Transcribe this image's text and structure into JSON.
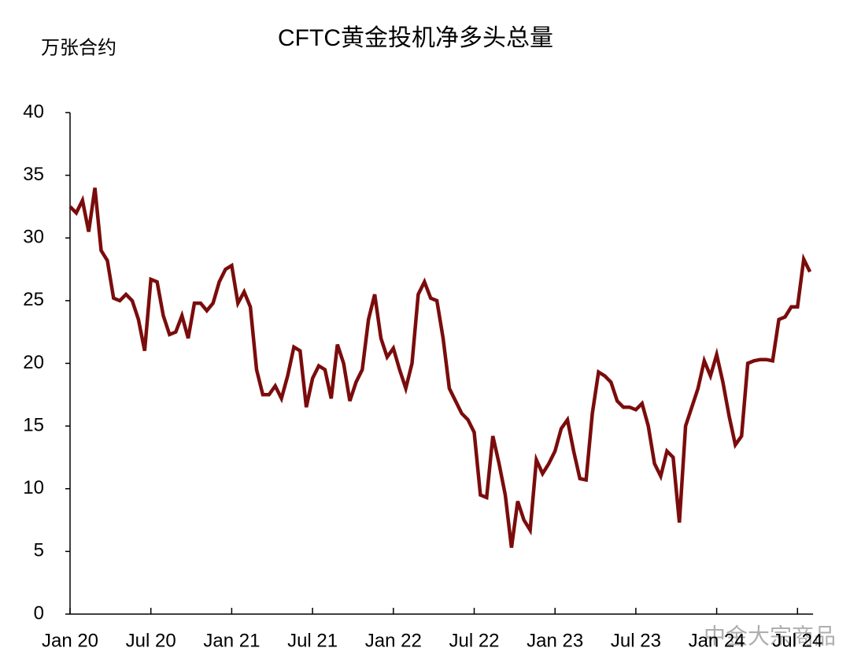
{
  "chart_data": {
    "type": "line",
    "title": "CFTC黄金投机净多头总量",
    "y_label": "万张合约",
    "watermark": "中金大宗商品",
    "categories": [
      "Jan 20",
      null,
      null,
      null,
      null,
      null,
      null,
      null,
      null,
      null,
      null,
      null,
      null,
      "Jul 20",
      null,
      null,
      null,
      null,
      null,
      null,
      null,
      null,
      null,
      null,
      null,
      null,
      "Jan 21",
      null,
      null,
      null,
      null,
      null,
      null,
      null,
      null,
      null,
      null,
      null,
      null,
      "Jul 21",
      null,
      null,
      null,
      null,
      null,
      null,
      null,
      null,
      null,
      null,
      null,
      null,
      "Jan 22",
      null,
      null,
      null,
      null,
      null,
      null,
      null,
      null,
      null,
      null,
      null,
      null,
      "Jul 22",
      null,
      null,
      null,
      null,
      null,
      null,
      null,
      null,
      null,
      null,
      null,
      null,
      "Jan 23",
      null,
      null,
      null,
      null,
      null,
      null,
      null,
      null,
      null,
      null,
      null,
      null,
      "Jul 23",
      null,
      null,
      null,
      null,
      null,
      null,
      null,
      null,
      null,
      null,
      null,
      null,
      "Jan 24",
      null,
      null,
      null,
      null,
      null,
      null,
      null,
      null,
      null,
      null,
      null,
      null,
      "Jul 24",
      null,
      null
    ],
    "series": [
      {
        "name": "CFTC黄金投机净多头总量",
        "color": "#7b0c0c",
        "values": [
          32.5,
          32,
          33,
          30.5,
          34,
          29,
          28.2,
          25.2,
          25,
          25.5,
          25,
          23.5,
          21,
          26.7,
          26.5,
          23.8,
          22.3,
          22.5,
          23.8,
          22,
          24.8,
          24.8,
          24.2,
          24.8,
          26.5,
          27.5,
          27.8,
          24.8,
          25.7,
          24.5,
          19.5,
          17.5,
          17.5,
          18.2,
          17.2,
          19,
          21.3,
          21,
          16.5,
          18.8,
          19.8,
          19.5,
          17.2,
          21.5,
          20,
          17,
          18.5,
          19.5,
          23.5,
          25.5,
          22,
          20.5,
          21.2,
          19.5,
          18,
          20,
          25.5,
          26.5,
          25.2,
          25,
          22,
          18,
          17,
          16,
          15.5,
          14.5,
          9.5,
          9.3,
          14.2,
          12,
          9.5,
          5.3,
          9,
          7.5,
          6.7,
          12.3,
          11.2,
          12,
          13,
          14.8,
          15.5,
          13,
          10.8,
          10.7,
          16,
          19.3,
          19,
          18.5,
          17,
          16.5,
          16.5,
          16.3,
          16.8,
          15,
          12,
          11,
          13,
          12.5,
          7.3,
          15,
          16.5,
          18,
          20.2,
          19,
          20.7,
          18.5,
          15.8,
          13.5,
          14.2,
          20,
          20.2,
          20.3,
          20.3,
          20.2,
          23.5,
          23.7,
          24.5,
          24.5,
          28.3,
          27.3
        ]
      }
    ],
    "ylim": [
      0,
      40
    ],
    "yticks": [
      0,
      5,
      10,
      15,
      20,
      25,
      30,
      35,
      40
    ],
    "grid": false
  }
}
